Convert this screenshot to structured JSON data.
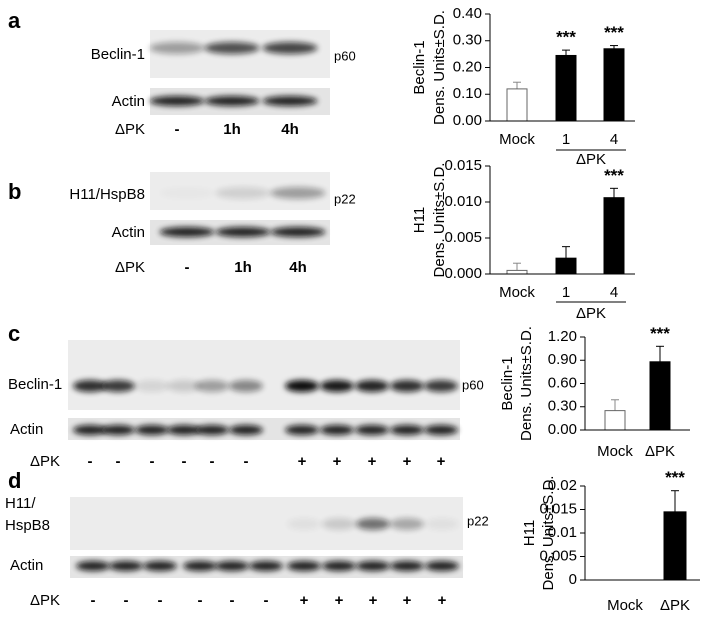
{
  "panels": [
    {
      "letter": "a",
      "rows": [
        {
          "name": "Beclin-1",
          "marker": "p60"
        },
        {
          "name": "Actin"
        }
      ],
      "treatment": "ΔPK",
      "lanes": [
        "-",
        "1h",
        "4h"
      ]
    },
    {
      "letter": "b",
      "rows": [
        {
          "name": "H11/HspB8",
          "marker": "p22"
        },
        {
          "name": "Actin"
        }
      ],
      "treatment": "ΔPK",
      "lanes": [
        "-",
        "1h",
        "4h"
      ]
    },
    {
      "letter": "c",
      "rows": [
        {
          "name": "Beclin-1",
          "marker": "p60"
        },
        {
          "name": "Actin"
        }
      ],
      "treatment": "ΔPK",
      "lanes": [
        "-",
        "-",
        "-",
        "-",
        "-",
        "-",
        "+",
        "+",
        "+",
        "+",
        "+"
      ]
    },
    {
      "letter": "d",
      "rows": [
        {
          "name": [
            "H11/",
            "HspB8"
          ],
          "marker": "p22"
        },
        {
          "name": "Actin"
        }
      ],
      "treatment": "ΔPK",
      "lanes": [
        "-",
        "-",
        "-",
        "-",
        "-",
        "-",
        "+",
        "+",
        "+",
        "+",
        "+"
      ]
    }
  ],
  "chart_data": [
    {
      "type": "bar",
      "ylabel": [
        "Beclin-1",
        "Dens. Units±S.D."
      ],
      "categories": [
        "Mock",
        "1",
        "4"
      ],
      "group_label": "ΔPK",
      "values": [
        0.12,
        0.245,
        0.27
      ],
      "errors": [
        0.025,
        0.02,
        0.012
      ],
      "colors": [
        "#ffffff",
        "#000000",
        "#000000"
      ],
      "annotations": [
        null,
        "***",
        "***"
      ],
      "ylim": [
        0,
        0.4
      ],
      "yticks": [
        {
          "value": 0,
          "label": "0.00"
        },
        {
          "value": 0.1,
          "label": "0.10"
        },
        {
          "value": 0.2,
          "label": "0.20"
        },
        {
          "value": 0.3,
          "label": "0.30"
        },
        {
          "value": 0.4,
          "label": "0.40"
        }
      ]
    },
    {
      "type": "bar",
      "ylabel": [
        "H11",
        "Dens. Units±S.D."
      ],
      "categories": [
        "Mock",
        "1",
        "4"
      ],
      "group_label": "ΔPK",
      "values": [
        0.0005,
        0.0022,
        0.0106
      ],
      "errors": [
        0.001,
        0.0016,
        0.0013
      ],
      "colors": [
        "#ffffff",
        "#000000",
        "#000000"
      ],
      "annotations": [
        null,
        null,
        "***"
      ],
      "ylim": [
        0,
        0.015
      ],
      "yticks": [
        {
          "value": 0,
          "label": "0.000"
        },
        {
          "value": 0.005,
          "label": "0.005"
        },
        {
          "value": 0.01,
          "label": "0.010"
        },
        {
          "value": 0.015,
          "label": "0.015"
        }
      ]
    },
    {
      "type": "bar",
      "ylabel": [
        "Beclin-1",
        "Dens. Units±S.D."
      ],
      "categories": [
        "Mock",
        "ΔPK"
      ],
      "values": [
        0.25,
        0.88
      ],
      "errors": [
        0.14,
        0.2
      ],
      "colors": [
        "#ffffff",
        "#000000"
      ],
      "annotations": [
        null,
        "***"
      ],
      "ylim": [
        0,
        1.2
      ],
      "yticks": [
        {
          "value": 0,
          "label": "0.00"
        },
        {
          "value": 0.3,
          "label": "0.30"
        },
        {
          "value": 0.6,
          "label": "0.60"
        },
        {
          "value": 0.9,
          "label": "0.90"
        },
        {
          "value": 1.2,
          "label": "1.20"
        }
      ]
    },
    {
      "type": "bar",
      "ylabel": [
        "H11",
        "Dens. Units±S.D."
      ],
      "categories": [
        "Mock",
        "ΔPK"
      ],
      "values": [
        0,
        0.0145
      ],
      "errors": [
        0,
        0.0045
      ],
      "colors": [
        "#ffffff",
        "#000000"
      ],
      "annotations": [
        null,
        "***"
      ],
      "ylim": [
        0,
        0.02
      ],
      "yticks": [
        0,
        0.005,
        0.01,
        0.015,
        0.02
      ]
    }
  ]
}
